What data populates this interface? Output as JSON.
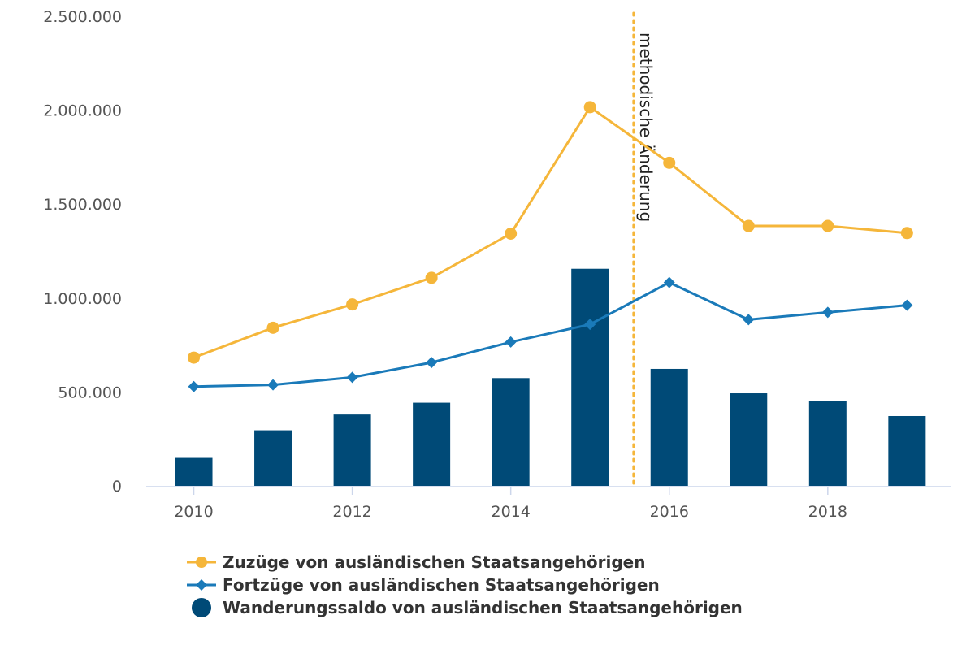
{
  "chart_data": {
    "type": "bar+line",
    "x": [
      2010,
      2011,
      2012,
      2013,
      2014,
      2015,
      2016,
      2017,
      2018,
      2019
    ],
    "x_ticks": [
      "2010",
      "2012",
      "2014",
      "2016",
      "2018"
    ],
    "y_ticks": [
      {
        "value": 0,
        "label": "0"
      },
      {
        "value": 500000,
        "label": "500.000"
      },
      {
        "value": 1000000,
        "label": "1.000.000"
      },
      {
        "value": 1500000,
        "label": "1.500.000"
      },
      {
        "value": 2000000,
        "label": "2.000.000"
      },
      {
        "value": 2500000,
        "label": "2.500.000"
      }
    ],
    "ylim": [
      0,
      2500000
    ],
    "xlim": [
      2009.4,
      2019.55
    ],
    "series": [
      {
        "name": "Zuzüge von ausländischen Staatsangehörigen",
        "type": "line",
        "marker": "circle",
        "color": "#f5b63a",
        "values": [
          683000,
          842000,
          966000,
          1108000,
          1343000,
          2016000,
          1720000,
          1384000,
          1384000,
          1346000
        ]
      },
      {
        "name": "Fortzüge von ausländischen Staatsangehörigen",
        "type": "line",
        "marker": "diamond",
        "color": "#1a7ab9",
        "values": [
          529000,
          538000,
          578000,
          657000,
          766000,
          860000,
          1083000,
          885000,
          924000,
          962000
        ]
      },
      {
        "name": "Wanderungssaldo von ausländischen Staatsangehörigen",
        "type": "bar",
        "marker": "circle",
        "color": "#004a77",
        "values": [
          149000,
          296000,
          380000,
          443000,
          574000,
          1156000,
          623000,
          493000,
          452000,
          372000
        ]
      }
    ],
    "annotations": [
      {
        "label": "methodische Änderung",
        "x": 2015.55,
        "color": "#f5b63a",
        "style": "dotted"
      }
    ],
    "grid": false,
    "legend_position": "bottom"
  }
}
